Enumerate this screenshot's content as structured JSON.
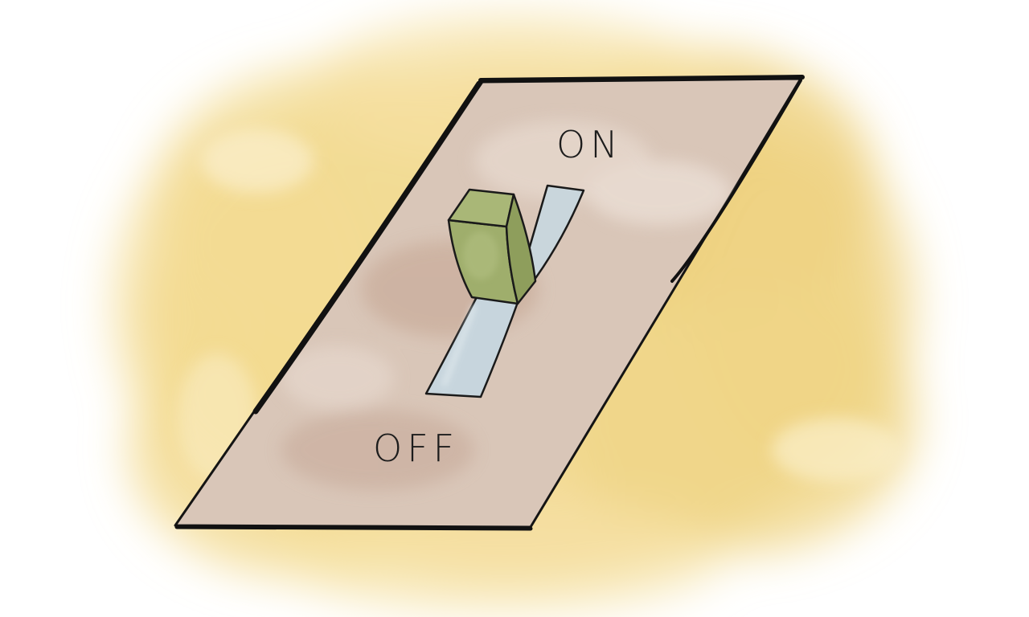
{
  "switch": {
    "on_label": "ON",
    "off_label": "OFF",
    "state": "on"
  },
  "colors": {
    "background_wash": "#f0d68a",
    "plate": "#d9c6b8",
    "plate_outline": "#111111",
    "toggle_lever": "#9fae6c",
    "toggle_slot": "#c9d6dc"
  }
}
